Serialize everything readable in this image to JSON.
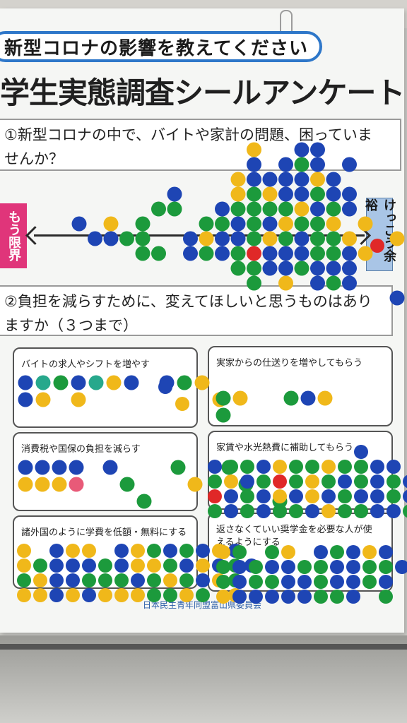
{
  "poster": {
    "subtitle": "新型コロナの影響を教えてください",
    "title": "学生実態調査シールアンケート",
    "q1": {
      "text_line1": "①新型コロナの中で、バイトや家計の問題、困っていま",
      "text_line2": "せんか？",
      "left_label": "もう限界",
      "right_label": "けっこう余裕"
    },
    "q2": {
      "text_line1": "②負担を減らすために、変えてほしいと思うものはあり",
      "text_line2": "ますか（３つまで）"
    },
    "options": [
      "バイトの求人やシフトを増やす",
      "実家からの仕送りを増やしてもらう",
      "消費税や国保の負担を減らす",
      "家賃や水光熱費に補助してもらう",
      "諸外国のように学費を低額・無料にする",
      "返さなくていい奨学金を必要な人が使えるようにする"
    ],
    "organization": "日本民主青年同盟富山県委員会"
  },
  "colors": {
    "blue": "#1e45b4",
    "green": "#1c9a3c",
    "yellow": "#f0b81a",
    "red": "#e02828",
    "pink": "#e85a78",
    "teal": "#27a88c"
  }
}
